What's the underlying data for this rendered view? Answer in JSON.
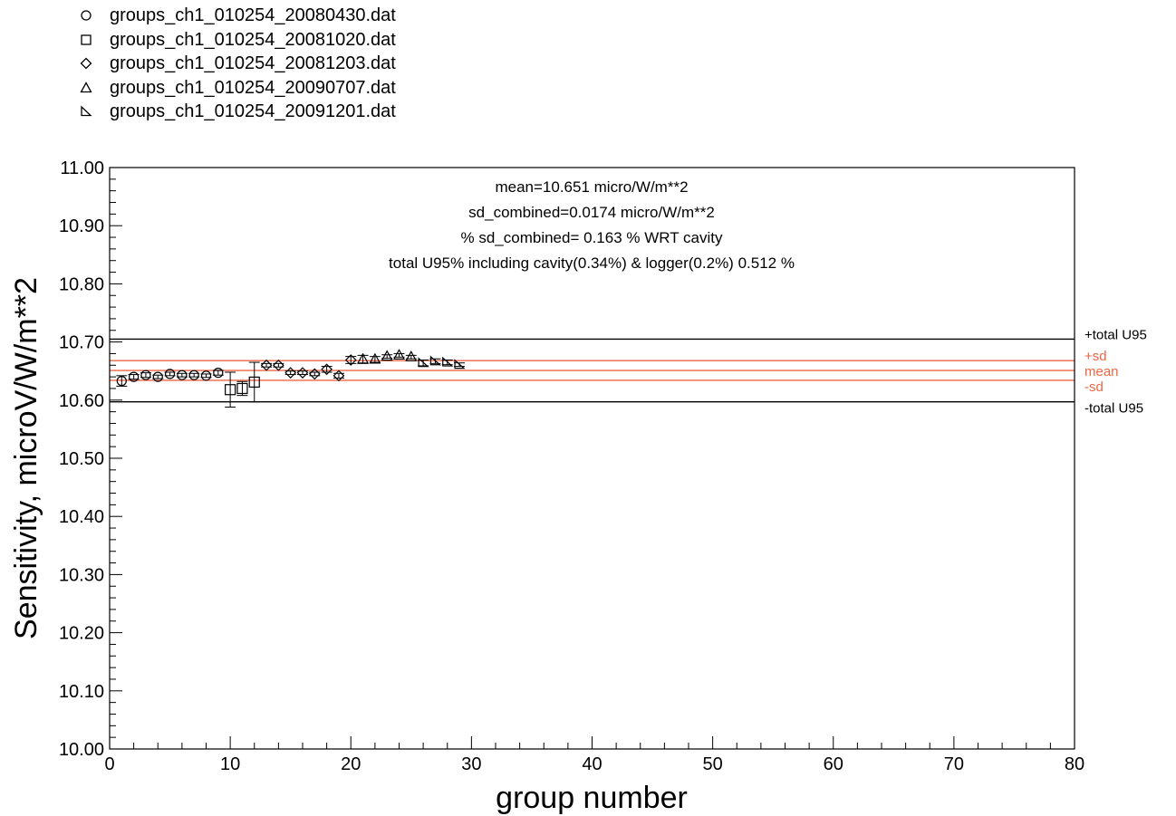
{
  "legend": {
    "items": [
      {
        "label": "groups_ch1_010254_20080430.dat",
        "marker": "circle"
      },
      {
        "label": "groups_ch1_010254_20081020.dat",
        "marker": "square"
      },
      {
        "label": "groups_ch1_010254_20081203.dat",
        "marker": "diamond"
      },
      {
        "label": "groups_ch1_010254_20090707.dat",
        "marker": "triangle"
      },
      {
        "label": "groups_ch1_010254_20091201.dat",
        "marker": "right-triangle"
      }
    ]
  },
  "chart_data": {
    "type": "scatter",
    "xlabel": "group number",
    "ylabel": "Sensitivity, microV/W/m**2",
    "xlim": [
      0,
      80
    ],
    "ylim": [
      10.0,
      11.0
    ],
    "x_ticks": [
      "0",
      "10",
      "20",
      "30",
      "40",
      "50",
      "60",
      "70",
      "80"
    ],
    "y_ticks": [
      "10.00",
      "10.10",
      "10.20",
      "10.30",
      "10.40",
      "10.50",
      "10.60",
      "10.70",
      "10.80",
      "10.90",
      "11.00"
    ],
    "annotations": [
      "mean=10.651 micro/W/m**2",
      "sd_combined=0.0174 micro/W/m**2",
      "% sd_combined= 0.163 % WRT cavity",
      "total U95% including cavity(0.34%) & logger(0.2%) 0.512 %"
    ],
    "reference_lines": [
      {
        "label": "+total U95",
        "y": 10.705,
        "color": "#000000"
      },
      {
        "label": "+sd",
        "y": 10.668,
        "color": "#ee6644"
      },
      {
        "label": "mean",
        "y": 10.651,
        "color": "#ee6644"
      },
      {
        "label": "-sd",
        "y": 10.634,
        "color": "#ee6644"
      },
      {
        "label": "-total U95",
        "y": 10.597,
        "color": "#000000"
      }
    ],
    "series": [
      {
        "name": "groups_ch1_010254_20080430.dat",
        "marker": "circle",
        "x": [
          1,
          2,
          3,
          4,
          5,
          6,
          7,
          8,
          9
        ],
        "y": [
          10.633,
          10.64,
          10.643,
          10.64,
          10.645,
          10.643,
          10.643,
          10.642,
          10.647
        ],
        "err": [
          0.009,
          0.004,
          0.004,
          0.003,
          0.003,
          0.003,
          0.003,
          0.003,
          0.004
        ]
      },
      {
        "name": "groups_ch1_010254_20081020.dat",
        "marker": "square",
        "x": [
          10,
          11,
          12
        ],
        "y": [
          10.618,
          10.62,
          10.631
        ],
        "err": [
          0.03,
          0.012,
          0.034
        ]
      },
      {
        "name": "groups_ch1_010254_20081203.dat",
        "marker": "diamond",
        "x": [
          13,
          14,
          15,
          16,
          17,
          18,
          19,
          20
        ],
        "y": [
          10.66,
          10.66,
          10.647,
          10.647,
          10.645,
          10.653,
          10.642,
          10.669
        ],
        "err": [
          0.003,
          0.003,
          0.003,
          0.003,
          0.003,
          0.005,
          0.004,
          0.006
        ]
      },
      {
        "name": "groups_ch1_010254_20090707.dat",
        "marker": "triangle",
        "x": [
          21,
          22,
          23,
          24,
          25
        ],
        "y": [
          10.67,
          10.67,
          10.675,
          10.677,
          10.674
        ],
        "err": [
          0.007,
          0.005,
          0.003,
          0.003,
          0.003
        ]
      },
      {
        "name": "groups_ch1_010254_20091201.dat",
        "marker": "right-triangle",
        "x": [
          26,
          27,
          28,
          29
        ],
        "y": [
          10.664,
          10.667,
          10.665,
          10.661
        ],
        "err": [
          0.005,
          0.004,
          0.004,
          0.003
        ]
      }
    ],
    "grid": false,
    "legend_position": "top-left"
  }
}
